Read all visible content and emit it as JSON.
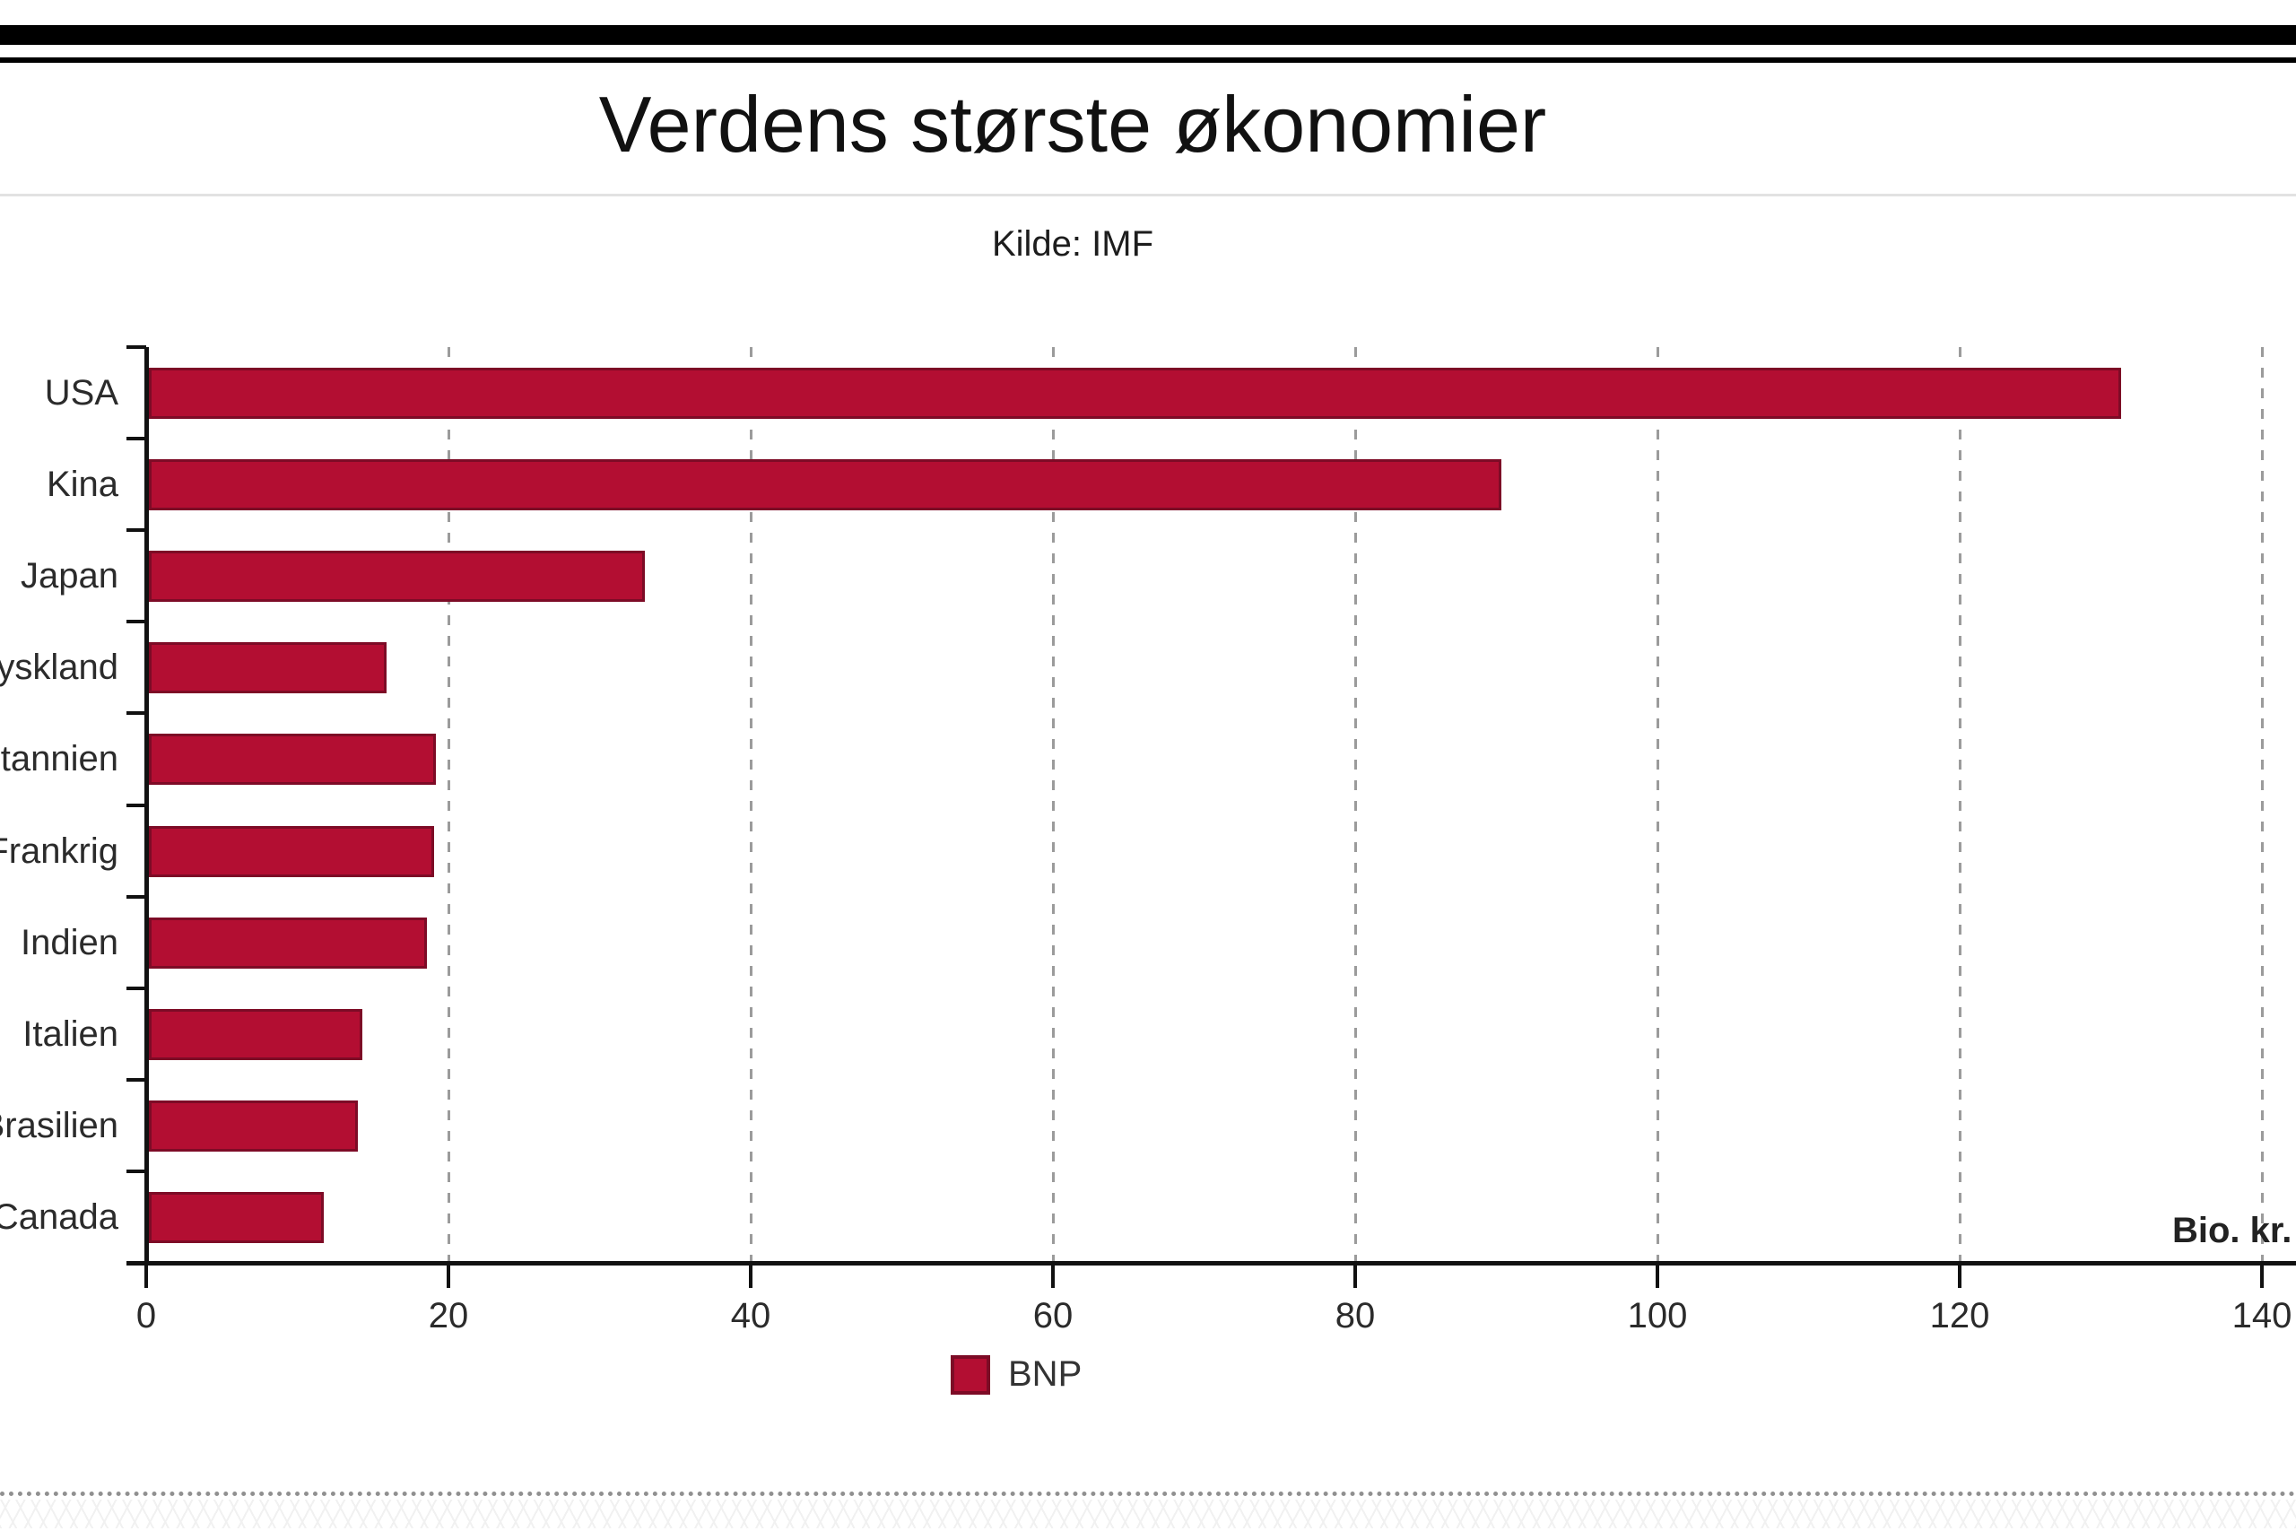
{
  "chart_data": {
    "type": "bar",
    "orientation": "horizontal",
    "title": "Verdens største økonomier",
    "subtitle": "Kilde: IMF",
    "categories": [
      "USA",
      "Kina",
      "Japan",
      "Tyskland",
      "Storbritannien",
      "Frankrig",
      "Indien",
      "Italien",
      "Brasilien",
      "Canada"
    ],
    "series": [
      {
        "name": "BNP",
        "values": [
          130.5,
          89.5,
          32.8,
          15.7,
          19.0,
          18.9,
          18.4,
          14.1,
          13.8,
          11.6
        ]
      }
    ],
    "xlabel": "Bio. kr.",
    "xlim": [
      0,
      140
    ],
    "xticks": [
      0,
      20,
      40,
      60,
      80,
      100,
      120,
      140
    ],
    "grid": "dashed-vertical-gray",
    "legend_position": "bottom-center",
    "bar_color": "#b30e32",
    "bar_border_color": "#7d0b26",
    "notes": "category labels are clipped at the left edge of the screenshot"
  },
  "legend": {
    "label": "BNP"
  },
  "axis": {
    "unit_label": "Bio. kr."
  }
}
